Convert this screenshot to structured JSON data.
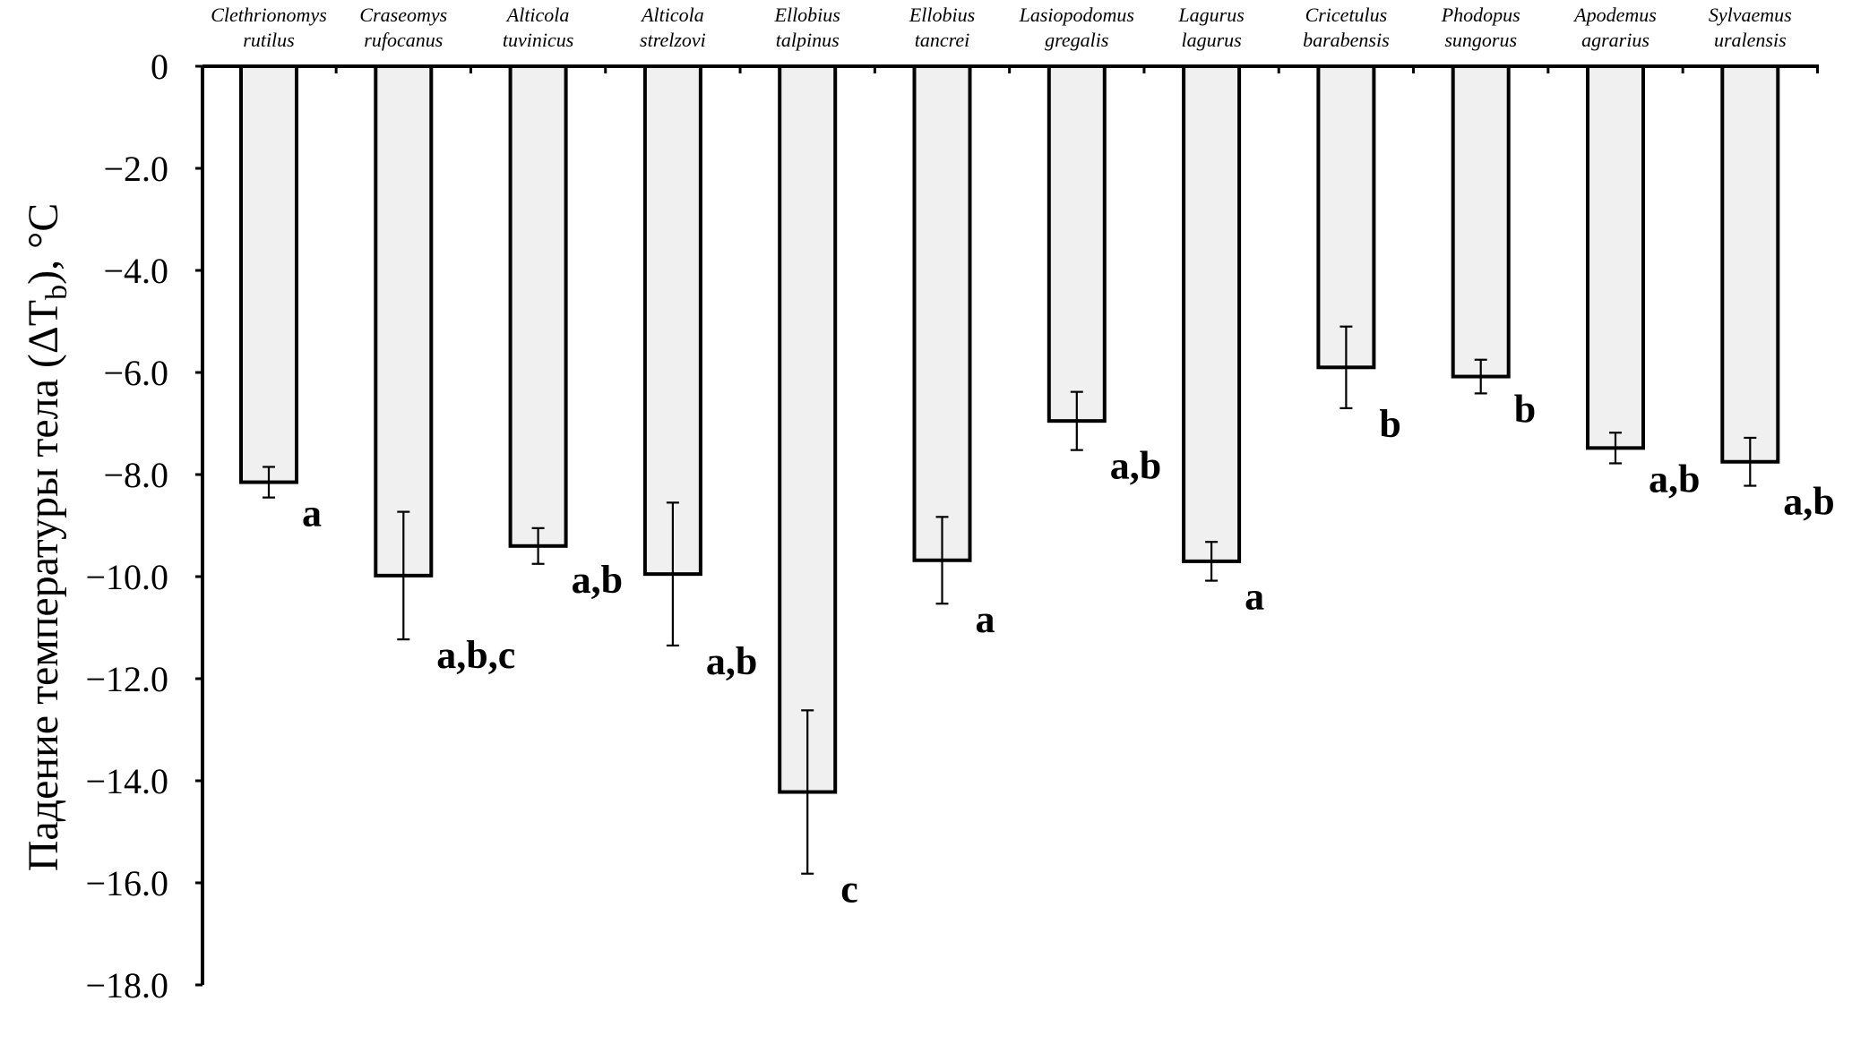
{
  "chart_data": {
    "type": "bar",
    "title": "",
    "xlabel": "",
    "ylabel": "Падение температуры тела (ΔT_b), °C",
    "ylabel_parts": {
      "prefix": "Падение температуры тела (ΔT",
      "subscript": "b",
      "suffix": "), °C"
    },
    "ylim": [
      -18.0,
      0
    ],
    "yticks": [
      0,
      -2.0,
      -4.0,
      -6.0,
      -8.0,
      -10.0,
      -12.0,
      -14.0,
      -16.0,
      -18.0
    ],
    "ytick_labels": [
      "0",
      "−2.0",
      "−4.0",
      "−6.0",
      "−8.0",
      "−10.0",
      "−12.0",
      "−14.0",
      "−16.0",
      "−18.0"
    ],
    "categories": [
      [
        "Clethrionomys",
        "rutilus"
      ],
      [
        "Craseomys",
        "rufocanus"
      ],
      [
        "Alticola",
        "tuvinicus"
      ],
      [
        "Alticola",
        "strelzovi"
      ],
      [
        "Ellobius",
        "talpinus"
      ],
      [
        "Ellobius",
        "tancrei"
      ],
      [
        "Lasiopodomus",
        "gregalis"
      ],
      [
        "Lagurus",
        "lagurus"
      ],
      [
        "Cricetulus",
        "barabensis"
      ],
      [
        "Phodopus",
        "sungorus"
      ],
      [
        "Apodemus",
        "agrarius"
      ],
      [
        "Sylvaemus",
        "uralensis"
      ]
    ],
    "values": [
      -8.15,
      -9.98,
      -9.4,
      -9.95,
      -14.22,
      -9.68,
      -6.95,
      -9.7,
      -5.9,
      -6.08,
      -7.48,
      -7.75
    ],
    "errors": [
      0.3,
      1.25,
      0.35,
      1.4,
      1.6,
      0.85,
      0.57,
      0.38,
      0.8,
      0.33,
      0.3,
      0.47
    ],
    "significance": [
      "a",
      "a,b,c",
      "a,b",
      "a,b",
      "c",
      "a",
      "a,b",
      "a",
      "b",
      "b",
      "a,b",
      "a,b"
    ],
    "grid": false,
    "colors": {
      "bar_fill": "#f0f0f0",
      "bar_stroke": "#000000"
    }
  }
}
